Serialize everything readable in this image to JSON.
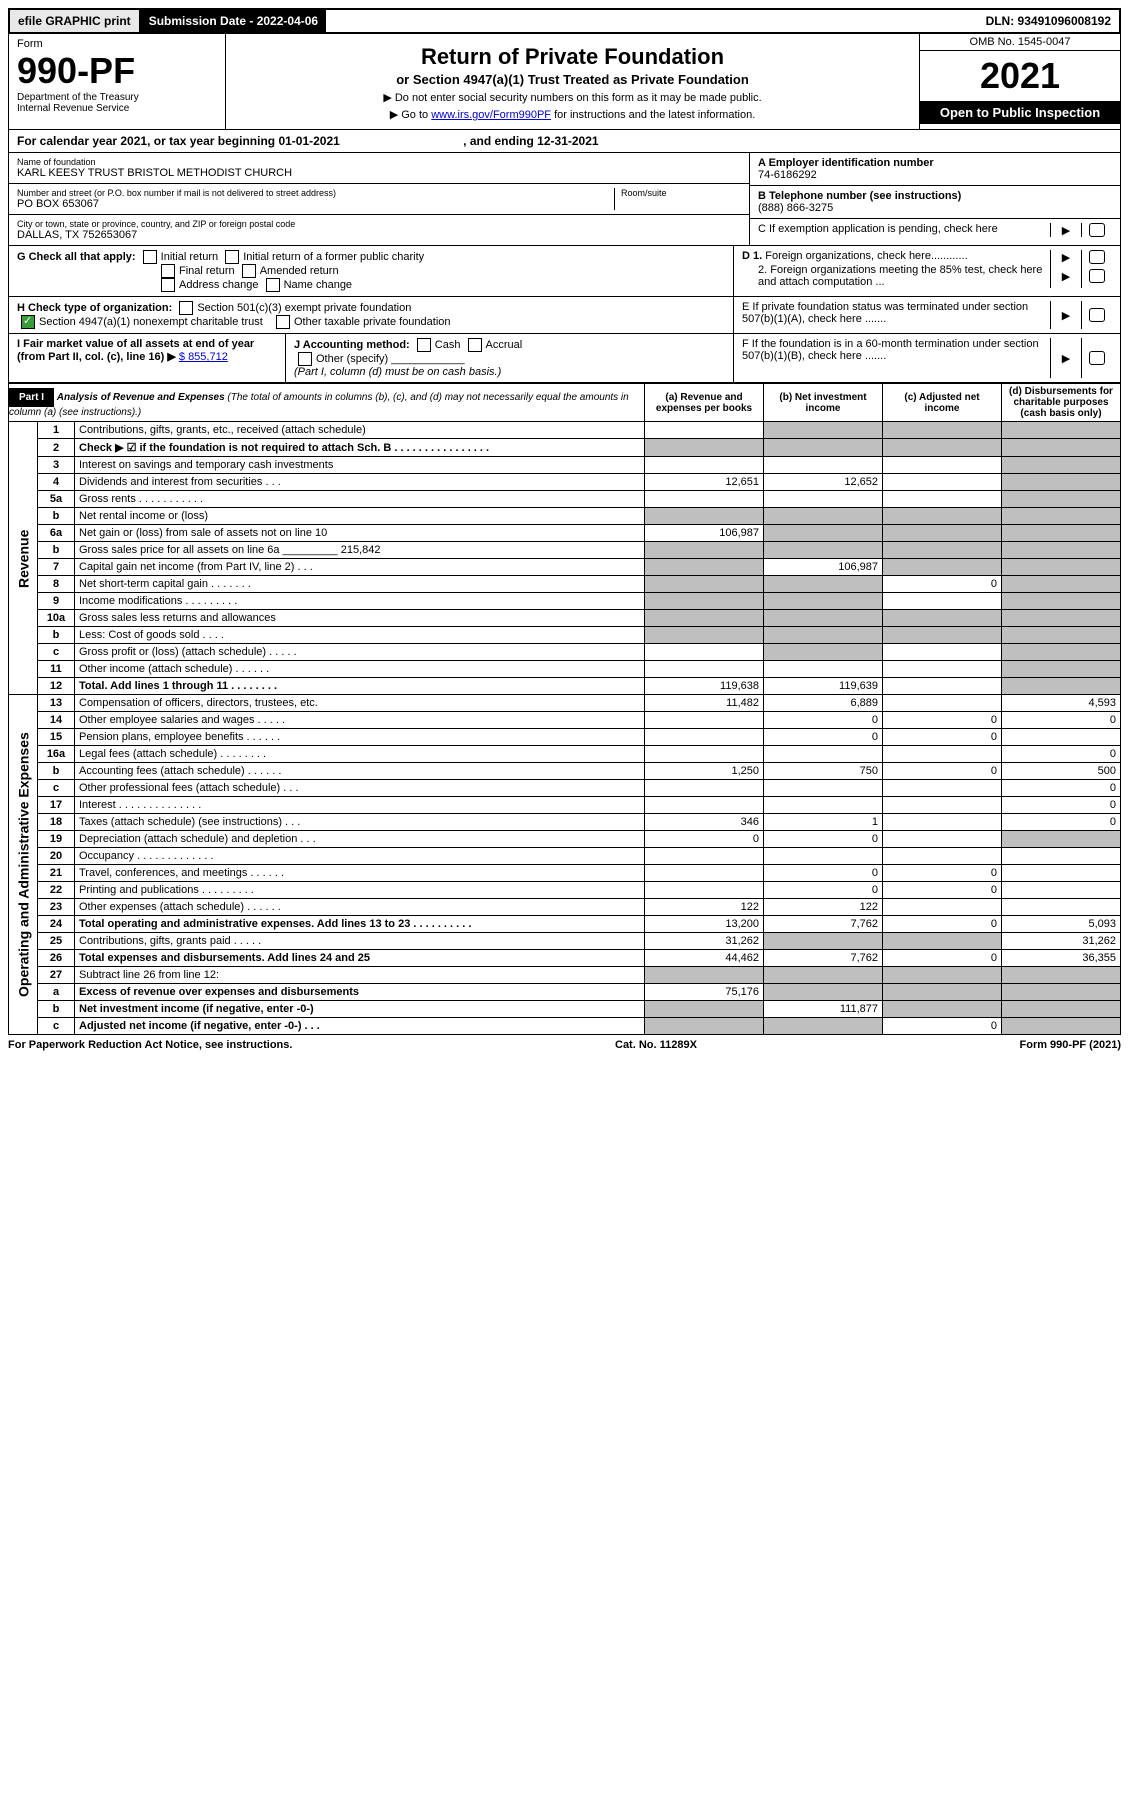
{
  "top": {
    "efile": "efile GRAPHIC print",
    "sub_label": "Submission Date - 2022-04-06",
    "dln": "DLN: 93491096008192"
  },
  "header": {
    "form_word": "Form",
    "form_number": "990-PF",
    "dept": "Department of the Treasury",
    "irs": "Internal Revenue Service",
    "title": "Return of Private Foundation",
    "subtitle": "or Section 4947(a)(1) Trust Treated as Private Foundation",
    "instr1": "▶ Do not enter social security numbers on this form as it may be made public.",
    "instr2_prefix": "▶ Go to ",
    "instr2_link": "www.irs.gov/Form990PF",
    "instr2_suffix": " for instructions and the latest information.",
    "omb": "OMB No. 1545-0047",
    "year": "2021",
    "open": "Open to Public Inspection"
  },
  "calendar": {
    "text": "For calendar year 2021, or tax year beginning 01-01-2021",
    "ending": ", and ending 12-31-2021"
  },
  "id": {
    "name_label": "Name of foundation",
    "name": "KARL KEESY TRUST BRISTOL METHODIST CHURCH",
    "addr_label": "Number and street (or P.O. box number if mail is not delivered to street address)",
    "addr": "PO BOX 653067",
    "room_label": "Room/suite",
    "city_label": "City or town, state or province, country, and ZIP or foreign postal code",
    "city": "DALLAS, TX  752653067",
    "a_label": "A Employer identification number",
    "a_val": "74-6186292",
    "b_label": "B Telephone number (see instructions)",
    "b_val": "(888) 866-3275",
    "c_label": "C If exemption application is pending, check here",
    "d1": "D 1. Foreign organizations, check here............",
    "d2": "2. Foreign organizations meeting the 85% test, check here and attach computation ...",
    "e": "E  If private foundation status was terminated under section 507(b)(1)(A), check here .......",
    "f": "F  If the foundation is in a 60-month termination under section 507(b)(1)(B), check here .......",
    "g_label": "G Check all that apply:",
    "g_opts": [
      "Initial return",
      "Initial return of a former public charity",
      "Final return",
      "Amended return",
      "Address change",
      "Name change"
    ],
    "h_label": "H Check type of organization:",
    "h1": "Section 501(c)(3) exempt private foundation",
    "h2": "Section 4947(a)(1) nonexempt charitable trust",
    "h3": "Other taxable private foundation",
    "i_label": "I Fair market value of all assets at end of year (from Part II, col. (c), line 16) ▶",
    "i_val": "$  855,712",
    "j_label": "J Accounting method:",
    "j_cash": "Cash",
    "j_accrual": "Accrual",
    "j_other": "Other (specify)",
    "j_note": "(Part I, column (d) must be on cash basis.)"
  },
  "part1": {
    "label": "Part I",
    "title": "Analysis of Revenue and Expenses",
    "title_note": " (The total of amounts in columns (b), (c), and (d) may not necessarily equal the amounts in column (a) (see instructions).)",
    "cols": {
      "a": "(a)  Revenue and expenses per books",
      "b": "(b)  Net investment income",
      "c": "(c)  Adjusted net income",
      "d": "(d)  Disbursements for charitable purposes (cash basis only)"
    },
    "vlabels": {
      "rev": "Revenue",
      "oae": "Operating and Administrative Expenses"
    }
  },
  "rows": [
    {
      "n": "1",
      "desc": "Contributions, gifts, grants, etc., received (attach schedule)",
      "a": "",
      "b": "g",
      "c": "g",
      "d": "g"
    },
    {
      "n": "2",
      "desc": "Check ▶ ☑ if the foundation is not required to attach Sch. B   .  .  .  .  .  .  .  .  .  .  .  .  .  .  .  .",
      "a": "g",
      "b": "g",
      "c": "g",
      "d": "g",
      "bold": true
    },
    {
      "n": "3",
      "desc": "Interest on savings and temporary cash investments",
      "a": "",
      "b": "",
      "c": "",
      "d": "g"
    },
    {
      "n": "4",
      "desc": "Dividends and interest from securities  .  .  .",
      "a": "12,651",
      "b": "12,652",
      "c": "",
      "d": "g"
    },
    {
      "n": "5a",
      "desc": "Gross rents  .  .  .  .  .  .  .  .  .  .  .",
      "a": "",
      "b": "",
      "c": "",
      "d": "g"
    },
    {
      "n": "b",
      "desc": "Net rental income or (loss)  ",
      "a": "g",
      "b": "g",
      "c": "g",
      "d": "g"
    },
    {
      "n": "6a",
      "desc": "Net gain or (loss) from sale of assets not on line 10",
      "a": "106,987",
      "b": "g",
      "c": "g",
      "d": "g"
    },
    {
      "n": "b",
      "desc": "Gross sales price for all assets on line 6a _________ 215,842",
      "a": "g",
      "b": "g",
      "c": "g",
      "d": "g"
    },
    {
      "n": "7",
      "desc": "Capital gain net income (from Part IV, line 2)  .  .  .",
      "a": "g",
      "b": "106,987",
      "c": "g",
      "d": "g"
    },
    {
      "n": "8",
      "desc": "Net short-term capital gain  .  .  .  .  .  .  .",
      "a": "g",
      "b": "g",
      "c": "0",
      "d": "g"
    },
    {
      "n": "9",
      "desc": "Income modifications  .  .  .  .  .  .  .  .  .",
      "a": "g",
      "b": "g",
      "c": "",
      "d": "g"
    },
    {
      "n": "10a",
      "desc": "Gross sales less returns and allowances",
      "a": "g",
      "b": "g",
      "c": "g",
      "d": "g"
    },
    {
      "n": "b",
      "desc": "Less: Cost of goods sold  .  .  .  .",
      "a": "g",
      "b": "g",
      "c": "g",
      "d": "g"
    },
    {
      "n": "c",
      "desc": "Gross profit or (loss) (attach schedule)  .  .  .  .  .",
      "a": "",
      "b": "g",
      "c": "",
      "d": "g"
    },
    {
      "n": "11",
      "desc": "Other income (attach schedule)  .  .  .  .  .  .",
      "a": "",
      "b": "",
      "c": "",
      "d": "g"
    },
    {
      "n": "12",
      "desc": "Total. Add lines 1 through 11  .  .  .  .  .  .  .  .",
      "a": "119,638",
      "b": "119,639",
      "c": "",
      "d": "g",
      "bold": true
    },
    {
      "n": "13",
      "desc": "Compensation of officers, directors, trustees, etc.",
      "a": "11,482",
      "b": "6,889",
      "c": "",
      "d": "4,593"
    },
    {
      "n": "14",
      "desc": "Other employee salaries and wages  .  .  .  .  .",
      "a": "",
      "b": "0",
      "c": "0",
      "d": "0"
    },
    {
      "n": "15",
      "desc": "Pension plans, employee benefits  .  .  .  .  .  .",
      "a": "",
      "b": "0",
      "c": "0",
      "d": ""
    },
    {
      "n": "16a",
      "desc": "Legal fees (attach schedule)  .  .  .  .  .  .  .  .",
      "a": "",
      "b": "",
      "c": "",
      "d": "0"
    },
    {
      "n": "b",
      "desc": "Accounting fees (attach schedule)  .  .  .  .  .  .",
      "a": "1,250",
      "b": "750",
      "c": "0",
      "d": "500"
    },
    {
      "n": "c",
      "desc": "Other professional fees (attach schedule)  .  .  .",
      "a": "",
      "b": "",
      "c": "",
      "d": "0"
    },
    {
      "n": "17",
      "desc": "Interest  .  .  .  .  .  .  .  .  .  .  .  .  .  .",
      "a": "",
      "b": "",
      "c": "",
      "d": "0"
    },
    {
      "n": "18",
      "desc": "Taxes (attach schedule) (see instructions)  .  .  .",
      "a": "346",
      "b": "1",
      "c": "",
      "d": "0"
    },
    {
      "n": "19",
      "desc": "Depreciation (attach schedule) and depletion  .  .  .",
      "a": "0",
      "b": "0",
      "c": "",
      "d": "g"
    },
    {
      "n": "20",
      "desc": "Occupancy  .  .  .  .  .  .  .  .  .  .  .  .  .",
      "a": "",
      "b": "",
      "c": "",
      "d": ""
    },
    {
      "n": "21",
      "desc": "Travel, conferences, and meetings  .  .  .  .  .  .",
      "a": "",
      "b": "0",
      "c": "0",
      "d": ""
    },
    {
      "n": "22",
      "desc": "Printing and publications  .  .  .  .  .  .  .  .  .",
      "a": "",
      "b": "0",
      "c": "0",
      "d": ""
    },
    {
      "n": "23",
      "desc": "Other expenses (attach schedule)  .  .  .  .  .  .",
      "a": "122",
      "b": "122",
      "c": "",
      "d": ""
    },
    {
      "n": "24",
      "desc": "Total operating and administrative expenses. Add lines 13 to 23  .  .  .  .  .  .  .  .  .  .",
      "a": "13,200",
      "b": "7,762",
      "c": "0",
      "d": "5,093",
      "bold": true
    },
    {
      "n": "25",
      "desc": "Contributions, gifts, grants paid  .  .  .  .  .",
      "a": "31,262",
      "b": "g",
      "c": "g",
      "d": "31,262"
    },
    {
      "n": "26",
      "desc": "Total expenses and disbursements. Add lines 24 and 25",
      "a": "44,462",
      "b": "7,762",
      "c": "0",
      "d": "36,355",
      "bold": true
    },
    {
      "n": "27",
      "desc": "Subtract line 26 from line 12:",
      "a": "g",
      "b": "g",
      "c": "g",
      "d": "g"
    },
    {
      "n": "a",
      "desc": "Excess of revenue over expenses and disbursements",
      "a": "75,176",
      "b": "g",
      "c": "g",
      "d": "g",
      "bold": true
    },
    {
      "n": "b",
      "desc": "Net investment income (if negative, enter -0-)",
      "a": "g",
      "b": "111,877",
      "c": "g",
      "d": "g",
      "bold": true
    },
    {
      "n": "c",
      "desc": "Adjusted net income (if negative, enter -0-)  .  .  .",
      "a": "g",
      "b": "g",
      "c": "0",
      "d": "g",
      "bold": true
    }
  ],
  "footer": {
    "left": "For Paperwork Reduction Act Notice, see instructions.",
    "mid": "Cat. No. 11289X",
    "right": "Form 990-PF (2021)"
  }
}
